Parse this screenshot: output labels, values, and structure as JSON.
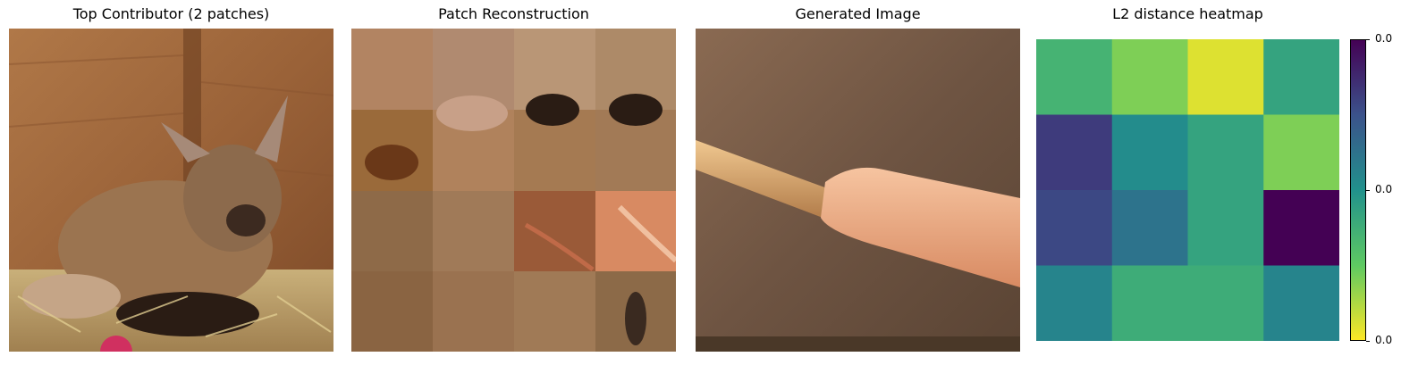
{
  "panels": {
    "contributor": {
      "title": "Top Contributor (2 patches)"
    },
    "reconstruction": {
      "title": "Patch Reconstruction"
    },
    "generated": {
      "title": "Generated Image"
    }
  },
  "chart_data": {
    "type": "heatmap",
    "title": "L2 distance heatmap",
    "rows": 4,
    "cols": 4,
    "values": [
      [
        0.65,
        0.8,
        0.95,
        0.58
      ],
      [
        0.18,
        0.48,
        0.58,
        0.8
      ],
      [
        0.22,
        0.38,
        0.58,
        0.0
      ],
      [
        0.45,
        0.62,
        0.62,
        0.45
      ]
    ],
    "colormap": "viridis_r",
    "colorbar": {
      "tick_labels": [
        "0.0",
        "0.0",
        "0.0"
      ]
    },
    "colors": {
      "min": "#440154",
      "max": "#fde725"
    }
  }
}
